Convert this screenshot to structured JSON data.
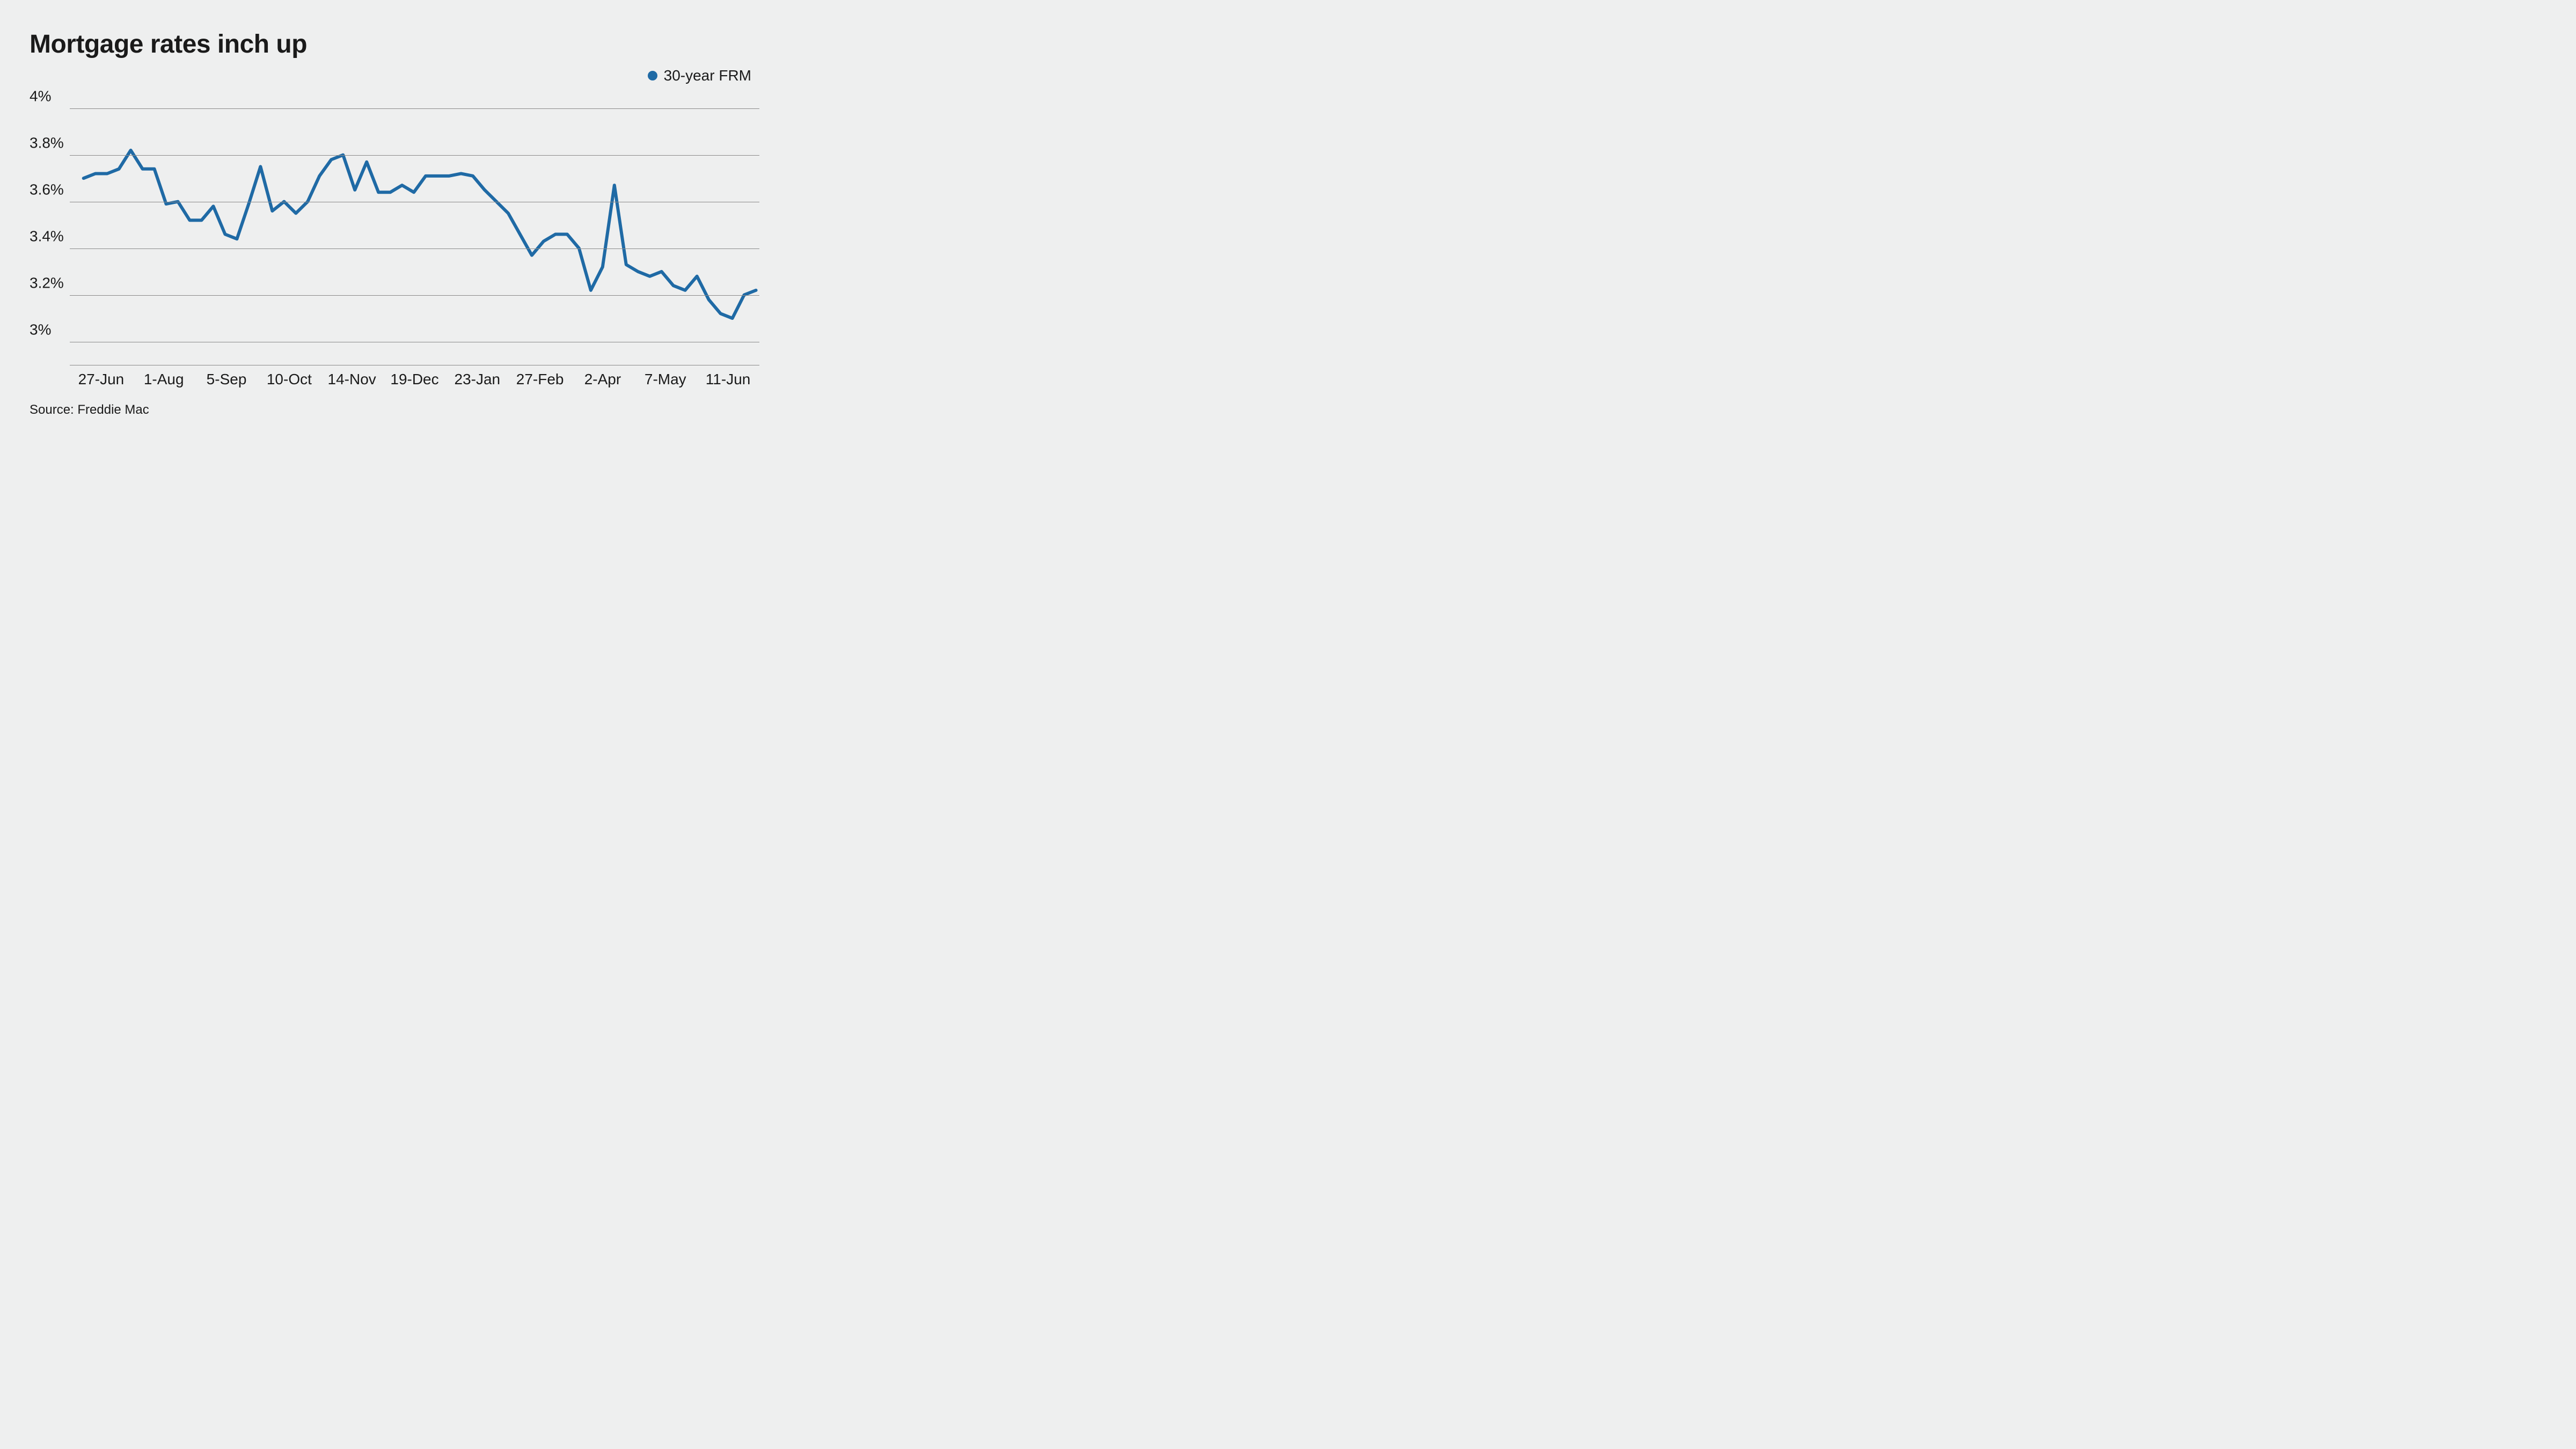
{
  "chart": {
    "type": "line",
    "title": "Mortgage rates inch up",
    "title_fontsize": 48,
    "title_fontweight": 700,
    "background_color": "#eeefef",
    "text_color": "#1a1a1a",
    "grid_color": "#8a8a8a",
    "axis_label_fontsize": 28,
    "source": "Source: Freddie Mac",
    "source_fontsize": 24,
    "legend": {
      "label": "30-year FRM",
      "dot_color": "#1f6aa5",
      "position": "top-right"
    },
    "line_color": "#1f6aa5",
    "line_width": 6,
    "y_axis": {
      "min": 2.9,
      "max": 4.05,
      "ticks": [
        {
          "value": 3.0,
          "label": "3%"
        },
        {
          "value": 3.2,
          "label": "3.2%"
        },
        {
          "value": 3.4,
          "label": "3.4%"
        },
        {
          "value": 3.6,
          "label": "3.6%"
        },
        {
          "value": 3.8,
          "label": "3.8%"
        },
        {
          "value": 4.0,
          "label": "4%"
        }
      ]
    },
    "x_axis": {
      "labels": [
        "27-Jun",
        "1-Aug",
        "5-Sep",
        "10-Oct",
        "14-Nov",
        "19-Dec",
        "23-Jan",
        "27-Feb",
        "2-Apr",
        "7-May",
        "11-Jun"
      ]
    },
    "series": {
      "name": "30-year FRM",
      "values": [
        3.7,
        3.72,
        3.72,
        3.74,
        3.82,
        3.74,
        3.74,
        3.59,
        3.6,
        3.52,
        3.52,
        3.58,
        3.46,
        3.44,
        3.59,
        3.75,
        3.56,
        3.6,
        3.55,
        3.6,
        3.71,
        3.78,
        3.8,
        3.65,
        3.77,
        3.64,
        3.64,
        3.67,
        3.64,
        3.71,
        3.71,
        3.71,
        3.72,
        3.71,
        3.65,
        3.6,
        3.55,
        3.46,
        3.37,
        3.43,
        3.46,
        3.46,
        3.4,
        3.22,
        3.32,
        3.67,
        3.33,
        3.3,
        3.28,
        3.3,
        3.24,
        3.22,
        3.28,
        3.18,
        3.12,
        3.1,
        3.2,
        3.22
      ]
    }
  }
}
